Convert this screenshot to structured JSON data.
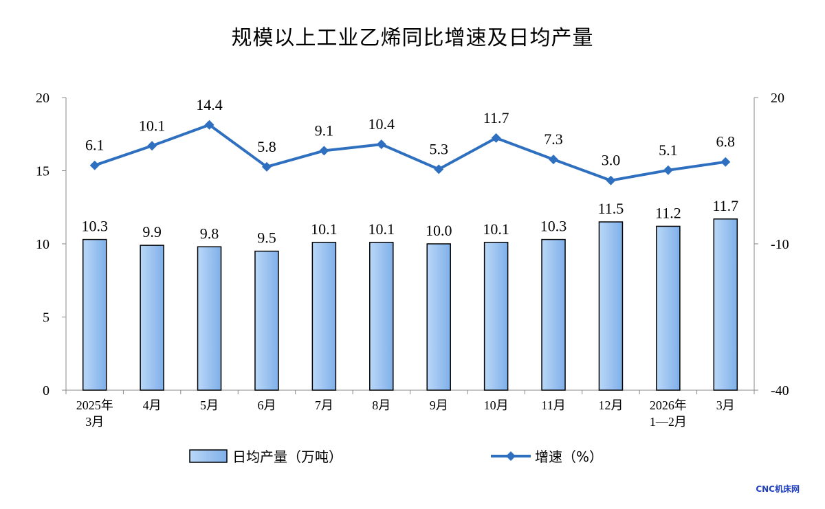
{
  "chart_data": {
    "type": "bar",
    "title": "规模以上工业乙烯同比增速及日均产量",
    "categories": [
      [
        "2025年",
        "3月"
      ],
      [
        "4月"
      ],
      [
        "5月"
      ],
      [
        "6月"
      ],
      [
        "7月"
      ],
      [
        "8月"
      ],
      [
        "9月"
      ],
      [
        "10月"
      ],
      [
        "11月"
      ],
      [
        "12月"
      ],
      [
        "2026年",
        "1—2月"
      ],
      [
        "3月"
      ]
    ],
    "series": [
      {
        "name": "日均产量（万吨）",
        "type": "bar",
        "axis": "left",
        "values": [
          10.3,
          9.9,
          9.8,
          9.5,
          10.1,
          10.1,
          10.0,
          10.1,
          10.3,
          11.5,
          11.2,
          11.7
        ],
        "labels": [
          "10.3",
          "9.9",
          "9.8",
          "9.5",
          "10.1",
          "10.1",
          "10.0",
          "10.1",
          "10.3",
          "11.5",
          "11.2",
          "11.7"
        ],
        "color": "#9dc3f0"
      },
      {
        "name": "增速（%）",
        "type": "line",
        "axis": "right",
        "values": [
          6.1,
          10.1,
          14.4,
          5.8,
          9.1,
          10.4,
          5.3,
          11.7,
          7.3,
          3.0,
          5.1,
          6.8
        ],
        "labels": [
          "6.1",
          "10.1",
          "14.4",
          "5.8",
          "9.1",
          "10.4",
          "5.3",
          "11.7",
          "7.3",
          "3.0",
          "5.1",
          "6.8"
        ],
        "color": "#2e6fc0"
      }
    ],
    "left_axis": {
      "ylim": [
        0,
        20
      ],
      "ticks": [
        "0",
        "5",
        "10",
        "15",
        "20"
      ]
    },
    "right_axis": {
      "ylim": [
        -40,
        20
      ],
      "ticks": [
        "-40",
        "-10",
        "20"
      ]
    },
    "legend_position": "bottom",
    "grid": false
  },
  "watermark": "CNC机床网"
}
